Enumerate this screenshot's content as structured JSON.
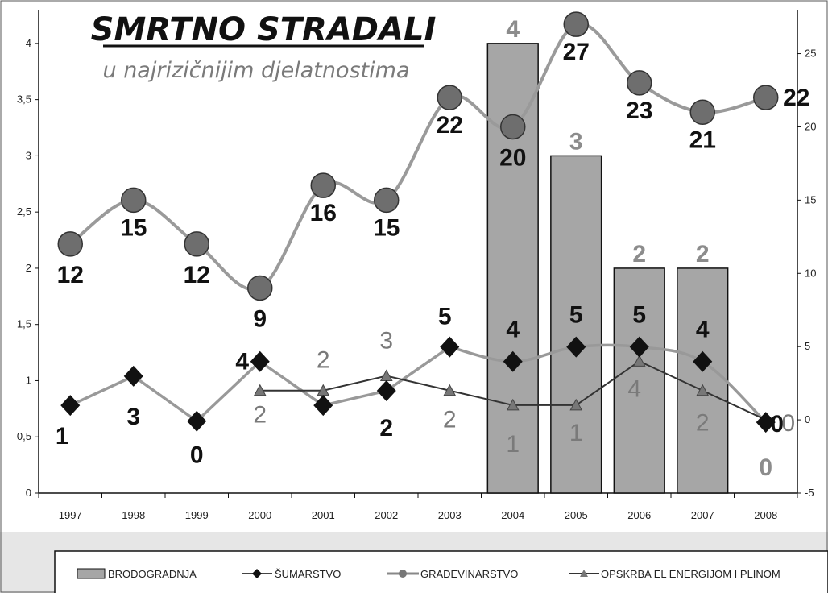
{
  "chart_data": {
    "type": "bar",
    "title": "SMRTNO STRADALI",
    "subtitle": "u najrizičnijim djelatnostima",
    "categories": [
      "1997",
      "1998",
      "1999",
      "2000",
      "2001",
      "2002",
      "2003",
      "2004",
      "2005",
      "2006",
      "2007",
      "2008"
    ],
    "y_left": {
      "ylim": [
        0,
        4.3
      ],
      "ticks": [
        "0",
        "0,5",
        "1",
        "1,5",
        "2",
        "2,5",
        "3",
        "3,5",
        "4"
      ],
      "tick_values": [
        0,
        0.5,
        1,
        1.5,
        2,
        2.5,
        3,
        3.5,
        4
      ]
    },
    "y_right": {
      "ylim": [
        -5,
        28
      ],
      "ticks": [
        "-5",
        "0",
        "5",
        "10",
        "15",
        "20",
        "25"
      ],
      "tick_values": [
        -5,
        0,
        5,
        10,
        15,
        20,
        25
      ]
    },
    "series": [
      {
        "name": "BRODOGRADNJA",
        "type": "bar",
        "axis": "left",
        "color": "#a6a6a6",
        "values": [
          null,
          null,
          null,
          null,
          null,
          null,
          null,
          4,
          3,
          2,
          2,
          null
        ],
        "labels": [
          "",
          "",
          "",
          "",
          "",
          "",
          "",
          "4",
          "3",
          "2",
          "2",
          ""
        ]
      },
      {
        "name": "ŠUMARSTVO",
        "type": "line",
        "axis": "left",
        "marker": "diamond",
        "color": "#111111",
        "line_color": "#999999",
        "values": [
          0.78,
          1.04,
          0.64,
          1.17,
          0.78,
          0.91,
          1.3,
          1.17,
          1.3,
          1.3,
          1.17,
          0.63
        ],
        "labels": [
          "1",
          "3",
          "0",
          "4",
          "",
          "2",
          "5",
          "4",
          "5",
          "5",
          "4",
          "0"
        ]
      },
      {
        "name": "GRAĐEVINARSTVO",
        "type": "line",
        "axis": "right",
        "marker": "circle",
        "color": "#6e6e6e",
        "line_color": "#9a9a9a",
        "values": [
          12,
          15,
          12,
          9,
          16,
          15,
          22,
          20,
          27,
          23,
          21,
          22
        ],
        "labels": [
          "12",
          "15",
          "12",
          "9",
          "16",
          "15",
          "22",
          "20",
          "27",
          "23",
          "21",
          "22"
        ]
      },
      {
        "name": "OPSKRBA EL ENERGIJOM I PLINOM",
        "type": "line",
        "axis": "right",
        "marker": "triangle",
        "color": "#777777",
        "line_color": "#333333",
        "values": [
          null,
          null,
          null,
          2,
          2,
          3,
          2,
          1,
          1,
          4,
          2,
          0
        ],
        "labels": [
          "",
          "",
          "",
          "2",
          "2",
          "3",
          "2",
          "1",
          "1",
          "4",
          "2",
          "0"
        ]
      }
    ],
    "extra_labels": [
      "0"
    ],
    "legend": {
      "placement": "bottom",
      "items": [
        "BRODOGRADNJA",
        "ŠUMARSTVO",
        "GRAĐEVINARSTVO",
        "OPSKRBA EL ENERGIJOM I PLINOM"
      ]
    }
  }
}
